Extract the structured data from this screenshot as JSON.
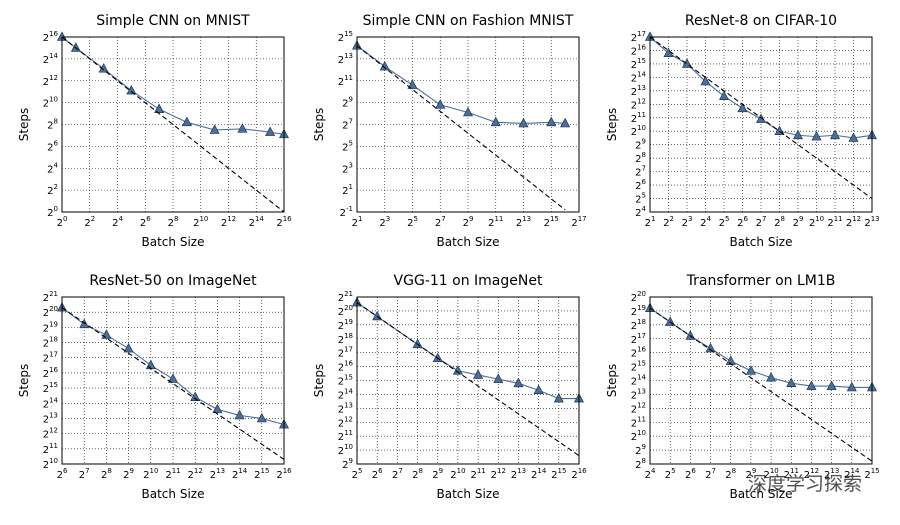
{
  "chart_data": [
    {
      "type": "line",
      "title": "Simple CNN on MNIST",
      "xlabel": "Batch Size",
      "ylabel": "Steps",
      "log_base": 2,
      "grid": true,
      "xlim": [
        1,
        65536
      ],
      "ylim": [
        1,
        65536
      ],
      "xticks": [
        {
          "value": 1,
          "label": "2^0"
        },
        {
          "value": 4,
          "label": "2^2"
        },
        {
          "value": 16,
          "label": "2^4"
        },
        {
          "value": 64,
          "label": "2^6"
        },
        {
          "value": 256,
          "label": "2^8"
        },
        {
          "value": 1024,
          "label": "2^10"
        },
        {
          "value": 4096,
          "label": "2^12"
        },
        {
          "value": 16384,
          "label": "2^14"
        },
        {
          "value": 65536,
          "label": "2^16"
        }
      ],
      "yticks": [
        {
          "value": 1,
          "label": "2^0"
        },
        {
          "value": 4,
          "label": "2^2"
        },
        {
          "value": 16,
          "label": "2^4"
        },
        {
          "value": 64,
          "label": "2^6"
        },
        {
          "value": 256,
          "label": "2^8"
        },
        {
          "value": 1024,
          "label": "2^10"
        },
        {
          "value": 4096,
          "label": "2^12"
        },
        {
          "value": 16384,
          "label": "2^14"
        },
        {
          "value": 65536,
          "label": "2^16"
        }
      ],
      "series": [
        {
          "color": "#4a6f9c",
          "marker": "triangle",
          "x": [
            1,
            2,
            8,
            32,
            128,
            512,
            2048,
            8192,
            32768,
            65536
          ],
          "values": [
            65536,
            32768,
            8782,
            2195,
            676,
            294,
            181,
            194,
            158,
            137
          ]
        },
        {
          "color": "#000000",
          "linestyle": "dashed",
          "x": [
            1,
            65536
          ],
          "values": [
            65536,
            1
          ]
        }
      ]
    },
    {
      "type": "line",
      "title": "Simple CNN on Fashion MNIST",
      "xlabel": "Batch Size",
      "ylabel": "Steps",
      "log_base": 2,
      "grid": true,
      "xlim": [
        2,
        131072
      ],
      "ylim": [
        0.5,
        32768
      ],
      "xticks": [
        {
          "value": 2,
          "label": "2^1"
        },
        {
          "value": 8,
          "label": "2^3"
        },
        {
          "value": 32,
          "label": "2^5"
        },
        {
          "value": 128,
          "label": "2^7"
        },
        {
          "value": 512,
          "label": "2^9"
        },
        {
          "value": 2048,
          "label": "2^11"
        },
        {
          "value": 8192,
          "label": "2^13"
        },
        {
          "value": 32768,
          "label": "2^15"
        },
        {
          "value": 131072,
          "label": "2^17"
        }
      ],
      "yticks": [
        {
          "value": 0.5,
          "label": "2^-1"
        },
        {
          "value": 2,
          "label": "2^1"
        },
        {
          "value": 8,
          "label": "2^3"
        },
        {
          "value": 32,
          "label": "2^5"
        },
        {
          "value": 128,
          "label": "2^7"
        },
        {
          "value": 512,
          "label": "2^9"
        },
        {
          "value": 2048,
          "label": "2^11"
        },
        {
          "value": 8192,
          "label": "2^13"
        },
        {
          "value": 32768,
          "label": "2^15"
        }
      ],
      "series": [
        {
          "color": "#4a6f9c",
          "marker": "triangle",
          "x": [
            2,
            8,
            32,
            128,
            512,
            2048,
            8192,
            32768,
            65536
          ],
          "values": [
            18820,
            5043,
            1552,
            446,
            274,
            147,
            137,
            147,
            137
          ]
        },
        {
          "color": "#000000",
          "linestyle": "dashed",
          "x": [
            2,
            65536
          ],
          "values": [
            18820,
            0.574
          ]
        }
      ]
    },
    {
      "type": "line",
      "title": "ResNet-8 on CIFAR-10",
      "xlabel": "Batch Size",
      "ylabel": "Steps",
      "log_base": 2,
      "grid": true,
      "xlim": [
        2,
        8192
      ],
      "ylim": [
        16,
        131072
      ],
      "xticks": [
        {
          "value": 2,
          "label": "2^1"
        },
        {
          "value": 4,
          "label": "2^2"
        },
        {
          "value": 8,
          "label": "2^3"
        },
        {
          "value": 16,
          "label": "2^4"
        },
        {
          "value": 32,
          "label": "2^5"
        },
        {
          "value": 64,
          "label": "2^6"
        },
        {
          "value": 128,
          "label": "2^7"
        },
        {
          "value": 256,
          "label": "2^8"
        },
        {
          "value": 512,
          "label": "2^9"
        },
        {
          "value": 1024,
          "label": "2^10"
        },
        {
          "value": 2048,
          "label": "2^11"
        },
        {
          "value": 4096,
          "label": "2^12"
        },
        {
          "value": 8192,
          "label": "2^13"
        }
      ],
      "yticks": [
        {
          "value": 16,
          "label": "2^4"
        },
        {
          "value": 32,
          "label": "2^5"
        },
        {
          "value": 64,
          "label": "2^6"
        },
        {
          "value": 128,
          "label": "2^7"
        },
        {
          "value": 256,
          "label": "2^8"
        },
        {
          "value": 512,
          "label": "2^9"
        },
        {
          "value": 1024,
          "label": "2^10"
        },
        {
          "value": 2048,
          "label": "2^11"
        },
        {
          "value": 4096,
          "label": "2^12"
        },
        {
          "value": 8192,
          "label": "2^13"
        },
        {
          "value": 16384,
          "label": "2^14"
        },
        {
          "value": 32768,
          "label": "2^15"
        },
        {
          "value": 65536,
          "label": "2^16"
        },
        {
          "value": 131072,
          "label": "2^17"
        }
      ],
      "series": [
        {
          "color": "#4a6f9c",
          "marker": "triangle",
          "x": [
            2,
            4,
            8,
            16,
            32,
            64,
            128,
            256,
            512,
            1024,
            2048,
            4096,
            8192
          ],
          "values": [
            131072,
            57052,
            32768,
            13308,
            6208,
            3327,
            1911,
            1024,
            832,
            776,
            832,
            724,
            832
          ]
        },
        {
          "color": "#000000",
          "linestyle": "dashed",
          "x": [
            2,
            8192
          ],
          "values": [
            131072,
            32
          ]
        }
      ]
    },
    {
      "type": "line",
      "title": "ResNet-50 on ImageNet",
      "xlabel": "Batch Size",
      "ylabel": "Steps",
      "log_base": 2,
      "grid": true,
      "xlim": [
        64,
        65536
      ],
      "ylim": [
        1024,
        2097152
      ],
      "xticks": [
        {
          "value": 64,
          "label": "2^6"
        },
        {
          "value": 128,
          "label": "2^7"
        },
        {
          "value": 256,
          "label": "2^8"
        },
        {
          "value": 512,
          "label": "2^9"
        },
        {
          "value": 1024,
          "label": "2^10"
        },
        {
          "value": 2048,
          "label": "2^11"
        },
        {
          "value": 4096,
          "label": "2^12"
        },
        {
          "value": 8192,
          "label": "2^13"
        },
        {
          "value": 16384,
          "label": "2^14"
        },
        {
          "value": 32768,
          "label": "2^15"
        },
        {
          "value": 65536,
          "label": "2^16"
        }
      ],
      "yticks": [
        {
          "value": 1024,
          "label": "2^10"
        },
        {
          "value": 2048,
          "label": "2^11"
        },
        {
          "value": 4096,
          "label": "2^12"
        },
        {
          "value": 8192,
          "label": "2^13"
        },
        {
          "value": 16384,
          "label": "2^14"
        },
        {
          "value": 32768,
          "label": "2^15"
        },
        {
          "value": 65536,
          "label": "2^16"
        },
        {
          "value": 131072,
          "label": "2^17"
        },
        {
          "value": 262144,
          "label": "2^18"
        },
        {
          "value": 524288,
          "label": "2^19"
        },
        {
          "value": 1048576,
          "label": "2^20"
        },
        {
          "value": 2097152,
          "label": "2^21"
        }
      ],
      "series": [
        {
          "color": "#4a6f9c",
          "marker": "triangle",
          "x": [
            64,
            128,
            256,
            512,
            1024,
            2048,
            4096,
            8192,
            16384,
            32768,
            65536
          ],
          "values": [
            1291000,
            602000,
            371000,
            199000,
            92700,
            49700,
            21600,
            12400,
            9410,
            8192,
            6208
          ]
        },
        {
          "color": "#000000",
          "linestyle": "dashed",
          "x": [
            64,
            65536
          ],
          "values": [
            1291000,
            1261
          ]
        }
      ]
    },
    {
      "type": "line",
      "title": "VGG-11 on ImageNet",
      "xlabel": "Batch Size",
      "ylabel": "Steps",
      "log_base": 2,
      "grid": true,
      "xlim": [
        32,
        65536
      ],
      "ylim": [
        512,
        2097152
      ],
      "xticks": [
        {
          "value": 32,
          "label": "2^5"
        },
        {
          "value": 64,
          "label": "2^6"
        },
        {
          "value": 128,
          "label": "2^7"
        },
        {
          "value": 256,
          "label": "2^8"
        },
        {
          "value": 512,
          "label": "2^9"
        },
        {
          "value": 1024,
          "label": "2^10"
        },
        {
          "value": 2048,
          "label": "2^11"
        },
        {
          "value": 4096,
          "label": "2^12"
        },
        {
          "value": 8192,
          "label": "2^13"
        },
        {
          "value": 16384,
          "label": "2^14"
        },
        {
          "value": 32768,
          "label": "2^15"
        },
        {
          "value": 65536,
          "label": "2^16"
        }
      ],
      "yticks": [
        {
          "value": 512,
          "label": "2^9"
        },
        {
          "value": 1024,
          "label": "2^10"
        },
        {
          "value": 2048,
          "label": "2^11"
        },
        {
          "value": 4096,
          "label": "2^12"
        },
        {
          "value": 8192,
          "label": "2^13"
        },
        {
          "value": 16384,
          "label": "2^14"
        },
        {
          "value": 32768,
          "label": "2^15"
        },
        {
          "value": 65536,
          "label": "2^16"
        },
        {
          "value": 131072,
          "label": "2^17"
        },
        {
          "value": 262144,
          "label": "2^18"
        },
        {
          "value": 524288,
          "label": "2^19"
        },
        {
          "value": 1048576,
          "label": "2^20"
        },
        {
          "value": 2097152,
          "label": "2^21"
        }
      ],
      "series": [
        {
          "color": "#4a6f9c",
          "marker": "triangle",
          "x": [
            32,
            64,
            256,
            512,
            1024,
            2048,
            4096,
            8192,
            16384,
            32768,
            65536
          ],
          "values": [
            1589000,
            795000,
            199000,
            99300,
            53200,
            43200,
            35120,
            28500,
            20200,
            13308,
            13308
          ]
        },
        {
          "color": "#000000",
          "linestyle": "dashed",
          "x": [
            32,
            65536
          ],
          "values": [
            1589000,
            776
          ]
        }
      ]
    },
    {
      "type": "line",
      "title": "Transformer on LM1B",
      "xlabel": "Batch Size",
      "ylabel": "Steps",
      "log_base": 2,
      "grid": true,
      "xlim": [
        16,
        32768
      ],
      "ylim": [
        256,
        1048576
      ],
      "xticks": [
        {
          "value": 16,
          "label": "2^4"
        },
        {
          "value": 32,
          "label": "2^5"
        },
        {
          "value": 64,
          "label": "2^6"
        },
        {
          "value": 128,
          "label": "2^7"
        },
        {
          "value": 256,
          "label": "2^8"
        },
        {
          "value": 512,
          "label": "2^9"
        },
        {
          "value": 1024,
          "label": "2^10"
        },
        {
          "value": 2048,
          "label": "2^11"
        },
        {
          "value": 4096,
          "label": "2^12"
        },
        {
          "value": 8192,
          "label": "2^13"
        },
        {
          "value": 16384,
          "label": "2^14"
        },
        {
          "value": 32768,
          "label": "2^15"
        }
      ],
      "yticks": [
        {
          "value": 256,
          "label": "2^8"
        },
        {
          "value": 512,
          "label": "2^9"
        },
        {
          "value": 1024,
          "label": "2^10"
        },
        {
          "value": 2048,
          "label": "2^11"
        },
        {
          "value": 4096,
          "label": "2^12"
        },
        {
          "value": 8192,
          "label": "2^13"
        },
        {
          "value": 16384,
          "label": "2^14"
        },
        {
          "value": 32768,
          "label": "2^15"
        },
        {
          "value": 65536,
          "label": "2^16"
        },
        {
          "value": 131072,
          "label": "2^17"
        },
        {
          "value": 262144,
          "label": "2^18"
        },
        {
          "value": 524288,
          "label": "2^19"
        },
        {
          "value": 1048576,
          "label": "2^20"
        }
      ],
      "series": [
        {
          "color": "#4a6f9c",
          "marker": "triangle",
          "x": [
            16,
            32,
            64,
            128,
            256,
            512,
            1024,
            2048,
            4096,
            8192,
            16384,
            32768
          ],
          "values": [
            602000,
            301000,
            151000,
            80700,
            43200,
            26600,
            18820,
            14300,
            12400,
            12400,
            11600,
            11600
          ]
        },
        {
          "color": "#000000",
          "linestyle": "dashed",
          "x": [
            16,
            32768
          ],
          "values": [
            602000,
            294
          ]
        }
      ]
    }
  ],
  "watermark": "深度学习探索"
}
